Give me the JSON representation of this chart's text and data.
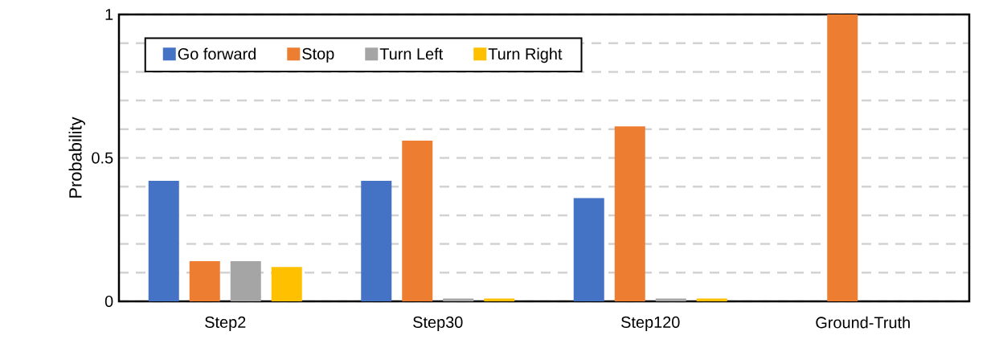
{
  "chart_data": {
    "type": "bar",
    "ylabel": "Probability",
    "categories": [
      "Step2",
      "Step30",
      "Step120",
      "Ground-Truth"
    ],
    "series": [
      {
        "name": "Go forward",
        "color": "#4472c4",
        "values": [
          0.42,
          0.42,
          0.36,
          0
        ]
      },
      {
        "name": "Stop",
        "color": "#ed7d31",
        "values": [
          0.14,
          0.56,
          0.61,
          1
        ]
      },
      {
        "name": "Turn Left",
        "color": "#a5a5a5",
        "values": [
          0.14,
          0.01,
          0.01,
          0
        ]
      },
      {
        "name": "Turn Right",
        "color": "#ffc000",
        "values": [
          0.12,
          0.01,
          0.01,
          0
        ]
      }
    ],
    "ylim": [
      0,
      1
    ],
    "yticks": [
      0,
      {
        "value": 0.1,
        "label": null
      },
      {
        "value": 0.2,
        "label": null
      },
      {
        "value": 0.3,
        "label": null
      },
      {
        "value": 0.4,
        "label": null
      },
      0.5,
      {
        "value": 0.6,
        "label": null
      },
      {
        "value": 0.7,
        "label": null
      },
      {
        "value": 0.8,
        "label": null
      },
      {
        "value": 0.9,
        "label": null
      },
      1
    ],
    "grid": "y",
    "legend": "top left"
  }
}
